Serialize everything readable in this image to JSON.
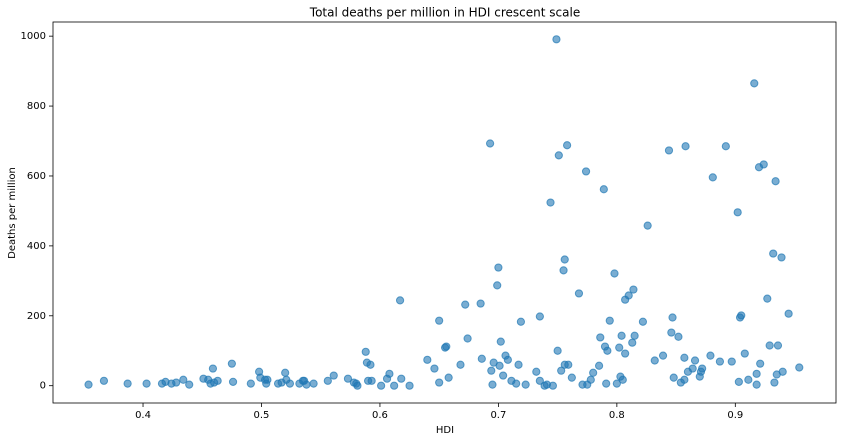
{
  "chart_data": {
    "type": "scatter",
    "title": "Total deaths per million in HDI crescent scale",
    "x_label": "HDI",
    "y_label": "Deaths per million",
    "color": "#1f77b4",
    "xlim": [
      0.324,
      0.985
    ],
    "ylim": [
      -49.5,
      1040.5
    ],
    "xticks": [
      0.4,
      0.5,
      0.6,
      0.7,
      0.8,
      0.9
    ],
    "yticks": [
      0,
      200,
      400,
      600,
      800,
      1000
    ],
    "grid": false,
    "x": [
      0.354,
      0.367,
      0.387,
      0.403,
      0.416,
      0.419,
      0.424,
      0.428,
      0.434,
      0.439,
      0.451,
      0.455,
      0.457,
      0.459,
      0.46,
      0.463,
      0.475,
      0.476,
      0.491,
      0.498,
      0.499,
      0.503,
      0.504,
      0.505,
      0.514,
      0.517,
      0.52,
      0.521,
      0.524,
      0.532,
      0.535,
      0.536,
      0.538,
      0.544,
      0.556,
      0.561,
      0.573,
      0.578,
      0.58,
      0.581,
      0.588,
      0.589,
      0.59,
      0.592,
      0.593,
      0.601,
      0.606,
      0.608,
      0.612,
      0.617,
      0.618,
      0.625,
      0.64,
      0.646,
      0.65,
      0.65,
      0.655,
      0.656,
      0.658,
      0.668,
      0.672,
      0.674,
      0.685,
      0.686,
      0.693,
      0.694,
      0.695,
      0.696,
      0.699,
      0.7,
      0.701,
      0.702,
      0.704,
      0.706,
      0.708,
      0.711,
      0.715,
      0.717,
      0.719,
      0.723,
      0.732,
      0.735,
      0.735,
      0.739,
      0.741,
      0.744,
      0.746,
      0.749,
      0.75,
      0.751,
      0.753,
      0.755,
      0.756,
      0.758,
      0.756,
      0.759,
      0.762,
      0.768,
      0.771,
      0.774,
      0.775,
      0.778,
      0.78,
      0.785,
      0.786,
      0.789,
      0.79,
      0.791,
      0.792,
      0.794,
      0.798,
      0.8,
      0.802,
      0.803,
      0.805,
      0.804,
      0.807,
      0.807,
      0.81,
      0.813,
      0.814,
      0.815,
      0.822,
      0.826,
      0.832,
      0.839,
      0.844,
      0.846,
      0.847,
      0.848,
      0.852,
      0.854,
      0.857,
      0.857,
      0.858,
      0.86,
      0.864,
      0.866,
      0.87,
      0.871,
      0.872,
      0.879,
      0.881,
      0.887,
      0.892,
      0.897,
      0.902,
      0.903,
      0.904,
      0.905,
      0.908,
      0.911,
      0.916,
      0.918,
      0.918,
      0.921,
      0.92,
      0.924,
      0.927,
      0.929,
      0.932,
      0.933,
      0.934,
      0.935,
      0.936,
      0.939,
      0.94,
      0.945,
      0.954
    ],
    "values": [
      3,
      14,
      6,
      6,
      6,
      11,
      6,
      9,
      17,
      3,
      20,
      17,
      6,
      49,
      9,
      14,
      63,
      11,
      6,
      40,
      23,
      17,
      6,
      17,
      6,
      9,
      37,
      17,
      6,
      6,
      14,
      14,
      3,
      6,
      14,
      29,
      20,
      9,
      6,
      0,
      97,
      66,
      14,
      60,
      14,
      0,
      20,
      34,
      0,
      244,
      20,
      0,
      74,
      49,
      186,
      9,
      109,
      112,
      23,
      60,
      232,
      135,
      235,
      77,
      693,
      43,
      3,
      66,
      287,
      338,
      57,
      126,
      29,
      86,
      74,
      14,
      6,
      60,
      183,
      3,
      40,
      198,
      14,
      0,
      3,
      524,
      0,
      991,
      100,
      659,
      43,
      330,
      361,
      688,
      60,
      60,
      23,
      264,
      3,
      613,
      3,
      17,
      37,
      57,
      138,
      562,
      112,
      6,
      100,
      186,
      321,
      6,
      109,
      26,
      17,
      143,
      246,
      92,
      258,
      123,
      275,
      143,
      183,
      458,
      72,
      86,
      673,
      152,
      195,
      23,
      140,
      9,
      17,
      80,
      685,
      40,
      49,
      72,
      26,
      40,
      49,
      86,
      596,
      69,
      685,
      69,
      496,
      11,
      195,
      201,
      92,
      17,
      865,
      34,
      3,
      63,
      625,
      633,
      249,
      115,
      378,
      9,
      585,
      32,
      115,
      367,
      40,
      206,
      52
    ]
  }
}
